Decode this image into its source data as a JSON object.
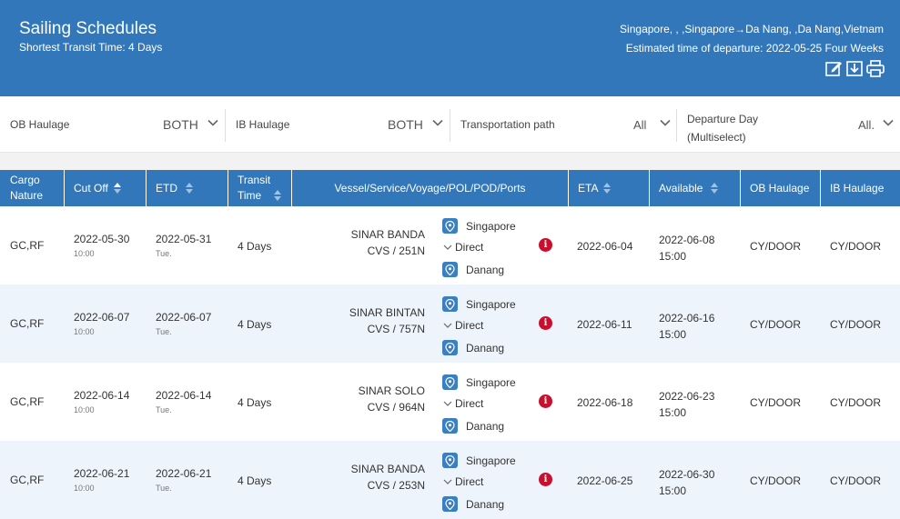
{
  "header": {
    "title": "Sailing Schedules",
    "subtitle": "Shortest Transit Time: 4 Days",
    "route": "Singapore, , ,Singapore→Da Nang, ,Da Nang,Vietnam",
    "etd": "Estimated time of departure: 2022-05-25 Four Weeks",
    "icons": [
      "edit-icon",
      "download-icon",
      "print-icon"
    ]
  },
  "filters": {
    "ob_haulage": {
      "label": "OB Haulage",
      "value": "BOTH"
    },
    "ib_haulage": {
      "label": "IB Haulage",
      "value": "BOTH"
    },
    "transport_path": {
      "label": "Transportation path",
      "value": "All"
    },
    "departure_day": {
      "label_line1": "Departure Day",
      "label_line2": "(Multiselect)",
      "value": "All."
    }
  },
  "table": {
    "headers": {
      "cargo_nature_1": "Cargo",
      "cargo_nature_2": "Nature",
      "cut_off": "Cut Off",
      "etd": "ETD",
      "transit_1": "Transit",
      "transit_2": "Time",
      "vessel": "Vessel/Service/Voyage/POL/POD/Ports",
      "eta": "ETA",
      "available": "Available",
      "ob_haulage": "OB Haulage",
      "ib_haulage": "IB Haulage"
    },
    "rows": [
      {
        "cargo": "GC,RF",
        "cutoff_date": "2022-05-30",
        "cutoff_time": "10:00",
        "etd_date": "2022-05-31",
        "etd_day": "Tue.",
        "transit": "4 Days",
        "vessel": "SINAR BANDA",
        "voyage": "CVS / 251N",
        "pol": "Singapore",
        "route": "Direct",
        "pod": "Danang",
        "info": "i",
        "eta": "2022-06-04",
        "avail_date": "2022-06-08",
        "avail_time": "15:00",
        "ob": "CY/DOOR",
        "ib": "CY/DOOR"
      },
      {
        "cargo": "GC,RF",
        "cutoff_date": "2022-06-07",
        "cutoff_time": "10:00",
        "etd_date": "2022-06-07",
        "etd_day": "Tue.",
        "transit": "4 Days",
        "vessel": "SINAR BINTAN",
        "voyage": "CVS / 757N",
        "pol": "Singapore",
        "route": "Direct",
        "pod": "Danang",
        "info": "i",
        "eta": "2022-06-11",
        "avail_date": "2022-06-16",
        "avail_time": "15:00",
        "ob": "CY/DOOR",
        "ib": "CY/DOOR"
      },
      {
        "cargo": "GC,RF",
        "cutoff_date": "2022-06-14",
        "cutoff_time": "10:00",
        "etd_date": "2022-06-14",
        "etd_day": "Tue.",
        "transit": "4 Days",
        "vessel": "SINAR SOLO",
        "voyage": "CVS / 964N",
        "pol": "Singapore",
        "route": "Direct",
        "pod": "Danang",
        "info": "i",
        "eta": "2022-06-18",
        "avail_date": "2022-06-23",
        "avail_time": "15:00",
        "ob": "CY/DOOR",
        "ib": "CY/DOOR"
      },
      {
        "cargo": "GC,RF",
        "cutoff_date": "2022-06-21",
        "cutoff_time": "10:00",
        "etd_date": "2022-06-21",
        "etd_day": "Tue.",
        "transit": "4 Days",
        "vessel": "SINAR BANDA",
        "voyage": "CVS / 253N",
        "pol": "Singapore",
        "route": "Direct",
        "pod": "Danang",
        "info": "i",
        "eta": "2022-06-25",
        "avail_date": "2022-06-30",
        "avail_time": "15:00",
        "ob": "CY/DOOR",
        "ib": "CY/DOOR"
      }
    ]
  },
  "colors": {
    "primary": "#3177b9",
    "alt_row": "#edf4fc",
    "info_red": "#c8102e"
  }
}
